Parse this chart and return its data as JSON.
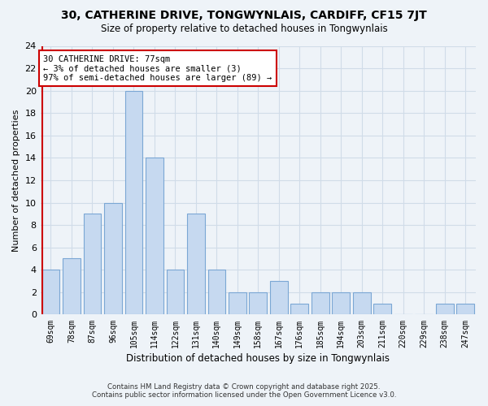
{
  "title": "30, CATHERINE DRIVE, TONGWYNLAIS, CARDIFF, CF15 7JT",
  "subtitle": "Size of property relative to detached houses in Tongwynlais",
  "xlabel": "Distribution of detached houses by size in Tongwynlais",
  "ylabel": "Number of detached properties",
  "bar_labels": [
    "69sqm",
    "78sqm",
    "87sqm",
    "96sqm",
    "105sqm",
    "114sqm",
    "122sqm",
    "131sqm",
    "140sqm",
    "149sqm",
    "158sqm",
    "167sqm",
    "176sqm",
    "185sqm",
    "194sqm",
    "203sqm",
    "211sqm",
    "220sqm",
    "229sqm",
    "238sqm",
    "247sqm"
  ],
  "bar_values": [
    4,
    5,
    9,
    10,
    20,
    14,
    4,
    9,
    4,
    2,
    2,
    3,
    1,
    2,
    2,
    2,
    1,
    0,
    0,
    1,
    1
  ],
  "bar_color": "#c6d9f0",
  "bar_edge_color": "#7ba7d4",
  "reference_line_x": -0.5,
  "reference_line_label": "30 CATHERINE DRIVE: 77sqm",
  "annotation_line1": "← 3% of detached houses are smaller (3)",
  "annotation_line2": "97% of semi-detached houses are larger (89) →",
  "annotation_box_color": "#ffffff",
  "annotation_box_edge_color": "#cc0000",
  "ylim": [
    0,
    24
  ],
  "yticks": [
    0,
    2,
    4,
    6,
    8,
    10,
    12,
    14,
    16,
    18,
    20,
    22,
    24
  ],
  "grid_color": "#d0dce8",
  "bg_color": "#eef3f8",
  "footer_line1": "Contains HM Land Registry data © Crown copyright and database right 2025.",
  "footer_line2": "Contains public sector information licensed under the Open Government Licence v3.0."
}
